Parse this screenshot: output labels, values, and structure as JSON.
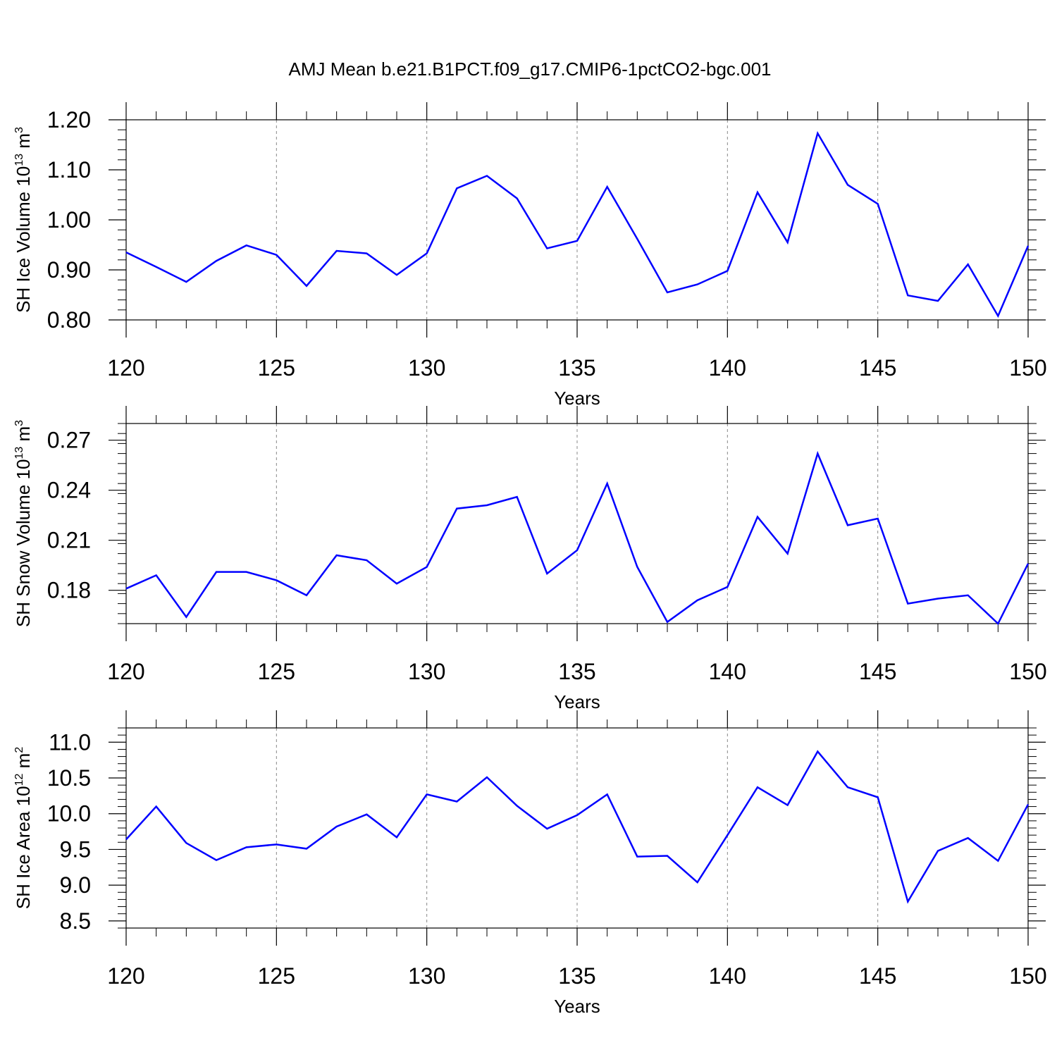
{
  "title": "AMJ Mean b.e21.B1PCT.f09_g17.CMIP6-1pctCO2-bgc.001",
  "line_color": "#0000ff",
  "grid_color": "#888888",
  "chart_data": [
    {
      "type": "line",
      "ylabel": "SH Ice Volume 10",
      "ylabel_exp": "13",
      "ylabel_unit": " m",
      "ylabel_unit_exp": "3",
      "xlabel": "Years",
      "xlim": [
        120,
        150
      ],
      "ylim": [
        0.8,
        1.2
      ],
      "xticks": [
        "120",
        "125",
        "130",
        "135",
        "140",
        "145",
        "150"
      ],
      "yticks": [
        "0.80",
        "0.90",
        "1.00",
        "1.10",
        "1.20"
      ],
      "grid": "vertical dashed at major x ticks",
      "series": [
        {
          "x": [
            120,
            121,
            122,
            123,
            124,
            125,
            126,
            127,
            128,
            129,
            130,
            131,
            132,
            133,
            134,
            135,
            136,
            137,
            138,
            139,
            140,
            141,
            142,
            143,
            144,
            145,
            146,
            147,
            148,
            149,
            150
          ],
          "values": [
            0.935,
            0.906,
            0.876,
            0.918,
            0.949,
            0.93,
            0.868,
            0.938,
            0.933,
            0.89,
            0.933,
            1.063,
            1.088,
            1.043,
            0.943,
            0.958,
            1.066,
            0.962,
            0.855,
            0.871,
            0.898,
            1.055,
            0.955,
            1.173,
            1.07,
            1.032,
            0.849,
            0.838,
            0.911,
            0.808,
            0.948
          ]
        }
      ]
    },
    {
      "type": "line",
      "ylabel": "SH Snow Volume 10",
      "ylabel_exp": "13",
      "ylabel_unit": " m",
      "ylabel_unit_exp": "3",
      "xlabel": "Years",
      "xlim": [
        120,
        150
      ],
      "ylim": [
        0.16,
        0.28
      ],
      "xticks": [
        "120",
        "125",
        "130",
        "135",
        "140",
        "145",
        "150"
      ],
      "yticks": [
        "0.18",
        "0.21",
        "0.24",
        "0.27"
      ],
      "grid": "vertical dashed at major x ticks",
      "series": [
        {
          "x": [
            120,
            121,
            122,
            123,
            124,
            125,
            126,
            127,
            128,
            129,
            130,
            131,
            132,
            133,
            134,
            135,
            136,
            137,
            138,
            139,
            140,
            141,
            142,
            143,
            144,
            145,
            146,
            147,
            148,
            149,
            150
          ],
          "values": [
            0.181,
            0.189,
            0.164,
            0.191,
            0.191,
            0.186,
            0.177,
            0.201,
            0.198,
            0.184,
            0.194,
            0.229,
            0.231,
            0.236,
            0.19,
            0.204,
            0.244,
            0.194,
            0.161,
            0.174,
            0.182,
            0.224,
            0.202,
            0.262,
            0.219,
            0.223,
            0.172,
            0.175,
            0.177,
            0.16,
            0.196
          ]
        }
      ]
    },
    {
      "type": "line",
      "ylabel": "SH Ice Area 10",
      "ylabel_exp": "12",
      "ylabel_unit": " m",
      "ylabel_unit_exp": "2",
      "xlabel": "Years",
      "xlim": [
        120,
        150
      ],
      "ylim": [
        8.4,
        11.2
      ],
      "xticks": [
        "120",
        "125",
        "130",
        "135",
        "140",
        "145",
        "150"
      ],
      "yticks": [
        "8.5",
        "9.0",
        "9.5",
        "10.0",
        "10.5",
        "11.0"
      ],
      "grid": "vertical dashed at major x ticks",
      "series": [
        {
          "x": [
            120,
            121,
            122,
            123,
            124,
            125,
            126,
            127,
            128,
            129,
            130,
            131,
            132,
            133,
            134,
            135,
            136,
            137,
            138,
            139,
            140,
            141,
            142,
            143,
            144,
            145,
            146,
            147,
            148,
            149,
            150
          ],
          "values": [
            9.64,
            10.1,
            9.59,
            9.35,
            9.53,
            9.57,
            9.51,
            9.82,
            9.99,
            9.67,
            10.27,
            10.17,
            10.51,
            10.11,
            9.79,
            9.98,
            10.27,
            9.4,
            9.41,
            9.04,
            9.7,
            10.37,
            10.12,
            10.87,
            10.37,
            10.23,
            8.77,
            9.48,
            9.66,
            9.34,
            10.13
          ]
        }
      ]
    }
  ]
}
